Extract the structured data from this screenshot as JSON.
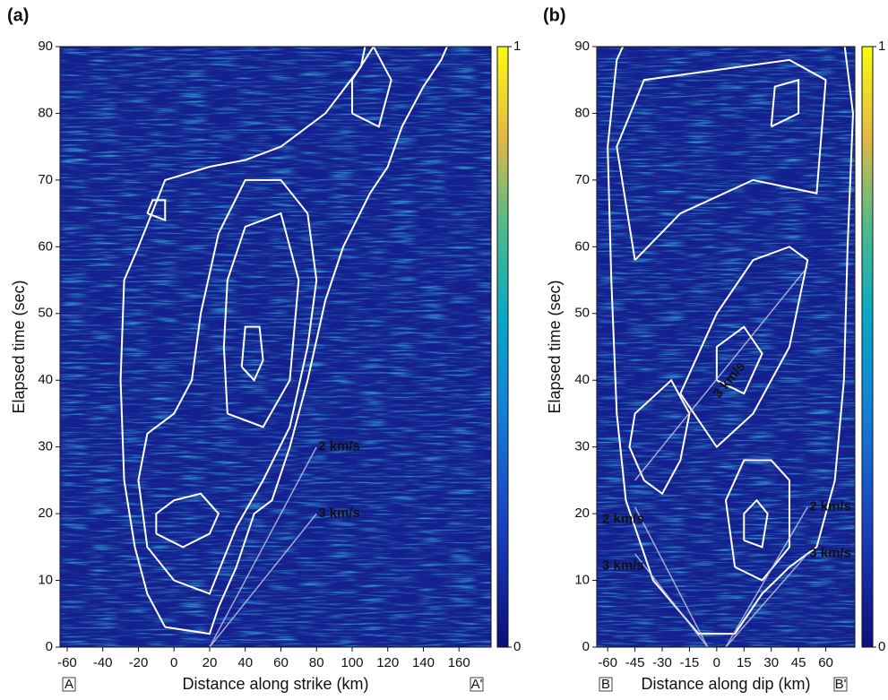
{
  "chart_data": [
    {
      "type": "contour",
      "panel_label": "(a)",
      "ylabel": "Elapsed time (sec)",
      "xlabel": "Distance along strike (km)",
      "end_labels": [
        "A",
        "A'"
      ],
      "xlim": [
        -64,
        178
      ],
      "ylim": [
        0,
        90
      ],
      "xticks": [
        -60,
        -40,
        -20,
        0,
        20,
        40,
        60,
        80,
        100,
        120,
        140,
        160
      ],
      "yticks": [
        0,
        10,
        20,
        30,
        40,
        50,
        60,
        70,
        80,
        90
      ],
      "colorbar": {
        "lim": [
          0,
          1
        ],
        "ticks": [
          0,
          1
        ]
      },
      "contour_color": "#ffffff",
      "line_color": "#c8c8e6",
      "contours": [
        {
          "x": [
            -5,
            20,
            25,
            35,
            45,
            55,
            65,
            75,
            85,
            95,
            110,
            120,
            128,
            140,
            150,
            155
          ],
          "y": [
            3,
            2,
            6,
            12,
            20,
            22,
            30,
            40,
            52,
            60,
            68,
            72,
            78,
            84,
            88,
            91
          ]
        },
        {
          "x": [
            -5,
            -15,
            -22,
            -28,
            -30,
            -28,
            -20,
            -5,
            20,
            40,
            60,
            85,
            105,
            108
          ],
          "y": [
            3,
            8,
            15,
            25,
            40,
            55,
            60,
            70,
            72,
            73,
            75,
            80,
            87,
            91
          ]
        },
        {
          "x": [
            0,
            20,
            35,
            50,
            65,
            75,
            80,
            75,
            60,
            40,
            25,
            15,
            10,
            0,
            -15,
            -20,
            -15,
            0
          ],
          "y": [
            10,
            8,
            18,
            25,
            33,
            45,
            55,
            65,
            70,
            70,
            62,
            50,
            40,
            35,
            32,
            25,
            15,
            10
          ]
        },
        {
          "x": [
            -10,
            5,
            20,
            25,
            15,
            0,
            -10,
            -10
          ],
          "y": [
            17,
            15,
            17,
            20,
            23,
            22,
            20,
            17
          ]
        },
        {
          "x": [
            30,
            50,
            65,
            70,
            60,
            40,
            30,
            28,
            30
          ],
          "y": [
            35,
            33,
            40,
            55,
            65,
            63,
            55,
            45,
            35
          ]
        },
        {
          "x": [
            38,
            45,
            50,
            48,
            40,
            38
          ],
          "y": [
            42,
            40,
            43,
            48,
            48,
            42
          ]
        },
        {
          "x": [
            100,
            115,
            122,
            112,
            100,
            100
          ],
          "y": [
            80,
            78,
            85,
            90,
            85,
            80
          ]
        },
        {
          "x": [
            -15,
            -5,
            -5,
            -12,
            -15
          ],
          "y": [
            65,
            64,
            67,
            67,
            65
          ]
        }
      ],
      "velocity_lines": [
        {
          "label": "2 km/s",
          "x": [
            20,
            80
          ],
          "y": [
            0,
            30
          ]
        },
        {
          "label": "3 km/s",
          "x": [
            20,
            80
          ],
          "y": [
            0,
            20
          ]
        }
      ]
    },
    {
      "type": "contour",
      "panel_label": "(b)",
      "ylabel": "Elapsed time (sec)",
      "xlabel": "Distance along dip (km)",
      "end_labels": [
        "B",
        "B'"
      ],
      "xlim": [
        -66,
        76
      ],
      "ylim": [
        0,
        90
      ],
      "xticks": [
        -60,
        -45,
        -30,
        -15,
        0,
        15,
        30,
        45,
        60
      ],
      "yticks": [
        0,
        10,
        20,
        30,
        40,
        50,
        60,
        70,
        80,
        90
      ],
      "colorbar": {
        "lim": [
          0,
          1
        ],
        "ticks": [
          0,
          1
        ]
      },
      "contour_color": "#ffffff",
      "line_color": "#c8c8e6",
      "contours": [
        {
          "x": [
            -50,
            -55,
            -60,
            -58,
            -55,
            -50,
            -35,
            -10,
            10,
            25,
            40,
            55,
            65,
            70,
            72,
            75,
            70
          ],
          "y": [
            91,
            88,
            75,
            55,
            35,
            22,
            10,
            2,
            2,
            8,
            12,
            15,
            25,
            40,
            60,
            80,
            91
          ]
        },
        {
          "x": [
            -40,
            -30,
            -20,
            -15,
            -25,
            -45,
            -48,
            -40
          ],
          "y": [
            25,
            23,
            28,
            35,
            40,
            35,
            30,
            25
          ]
        },
        {
          "x": [
            10,
            25,
            40,
            40,
            30,
            15,
            5,
            10
          ],
          "y": [
            12,
            10,
            15,
            25,
            28,
            28,
            22,
            12
          ]
        },
        {
          "x": [
            15,
            25,
            28,
            22,
            15,
            15
          ],
          "y": [
            16,
            15,
            20,
            22,
            20,
            16
          ]
        },
        {
          "x": [
            -20,
            0,
            20,
            40,
            50,
            40,
            20,
            0,
            -20
          ],
          "y": [
            38,
            30,
            35,
            45,
            58,
            60,
            58,
            50,
            38
          ]
        },
        {
          "x": [
            0,
            15,
            25,
            15,
            0,
            0
          ],
          "y": [
            40,
            38,
            44,
            48,
            45,
            40
          ]
        },
        {
          "x": [
            -45,
            -20,
            20,
            55,
            60,
            40,
            -40,
            -55,
            -45
          ],
          "y": [
            58,
            65,
            70,
            68,
            85,
            88,
            85,
            75,
            58
          ]
        },
        {
          "x": [
            30,
            45,
            45,
            32,
            30
          ],
          "y": [
            78,
            80,
            85,
            84,
            78
          ]
        }
      ],
      "velocity_lines": [
        {
          "label": "2 km/s",
          "x": [
            -5,
            -45
          ],
          "y": [
            0,
            21
          ]
        },
        {
          "label": "3 km/s",
          "x": [
            -5,
            -45
          ],
          "y": [
            0,
            14
          ]
        },
        {
          "label": "2 km/s",
          "x": [
            5,
            50
          ],
          "y": [
            0,
            21
          ]
        },
        {
          "label": "3 km/s",
          "x": [
            5,
            50
          ],
          "y": [
            0,
            14
          ]
        },
        {
          "label": "3 km/s",
          "x": [
            -45,
            50
          ],
          "y": [
            25,
            57
          ]
        }
      ]
    }
  ]
}
